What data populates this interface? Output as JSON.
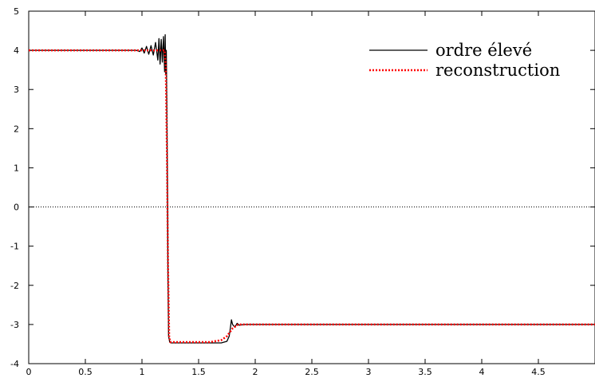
{
  "chart_data": {
    "type": "line",
    "title": "",
    "xlabel": "",
    "ylabel": "",
    "xlim": [
      0,
      5
    ],
    "ylim": [
      -4,
      5
    ],
    "xticks": [
      0,
      0.5,
      1,
      1.5,
      2,
      2.5,
      3,
      3.5,
      4,
      4.5
    ],
    "yticks": [
      -4,
      -3,
      -2,
      -1,
      0,
      1,
      2,
      3,
      4,
      5
    ],
    "xtick_labels": [
      "0",
      "0.5",
      "1",
      "1.5",
      "2",
      "2.5",
      "3",
      "3.5",
      "4",
      "4.5"
    ],
    "ytick_labels": [
      "-4",
      "-3",
      "-2",
      "-1",
      "0",
      "1",
      "2",
      "3",
      "4",
      "5"
    ],
    "grid": false,
    "zero_line": "dotted",
    "legend_position": "top-right",
    "series": [
      {
        "name": "ordre élevé",
        "color": "#000000",
        "style": "solid",
        "x": [
          0,
          0.95,
          0.98,
          1.0,
          1.02,
          1.04,
          1.06,
          1.08,
          1.1,
          1.12,
          1.14,
          1.15,
          1.16,
          1.17,
          1.18,
          1.19,
          1.2,
          1.205,
          1.21,
          1.215,
          1.22,
          1.225,
          1.23,
          1.235,
          1.245,
          1.255,
          1.5,
          1.7,
          1.75,
          1.77,
          1.78,
          1.79,
          1.8,
          1.82,
          1.84,
          1.86,
          1.9,
          5
        ],
        "y": [
          4,
          4,
          3.97,
          4.06,
          3.93,
          4.1,
          3.9,
          4.12,
          3.88,
          4.2,
          3.75,
          4.3,
          3.65,
          4.28,
          3.7,
          4.35,
          3.45,
          4.4,
          3.4,
          4.0,
          2.5,
          0.5,
          -2.0,
          -3.3,
          -3.45,
          -3.47,
          -3.47,
          -3.47,
          -3.43,
          -3.3,
          -3.1,
          -2.88,
          -3.0,
          -3.07,
          -2.97,
          -3.02,
          -3.0,
          -3.0
        ]
      },
      {
        "name": "reconstruction",
        "color": "#ff0000",
        "style": "dotted",
        "x": [
          0,
          1.2,
          1.21,
          1.22,
          1.23,
          1.24,
          1.25,
          1.6,
          1.7,
          1.75,
          1.8,
          1.85,
          1.9,
          5
        ],
        "y": [
          4,
          4,
          3.6,
          1.5,
          -1.5,
          -3.3,
          -3.45,
          -3.45,
          -3.4,
          -3.3,
          -3.1,
          -3.0,
          -3.0,
          -3.0
        ]
      }
    ]
  }
}
